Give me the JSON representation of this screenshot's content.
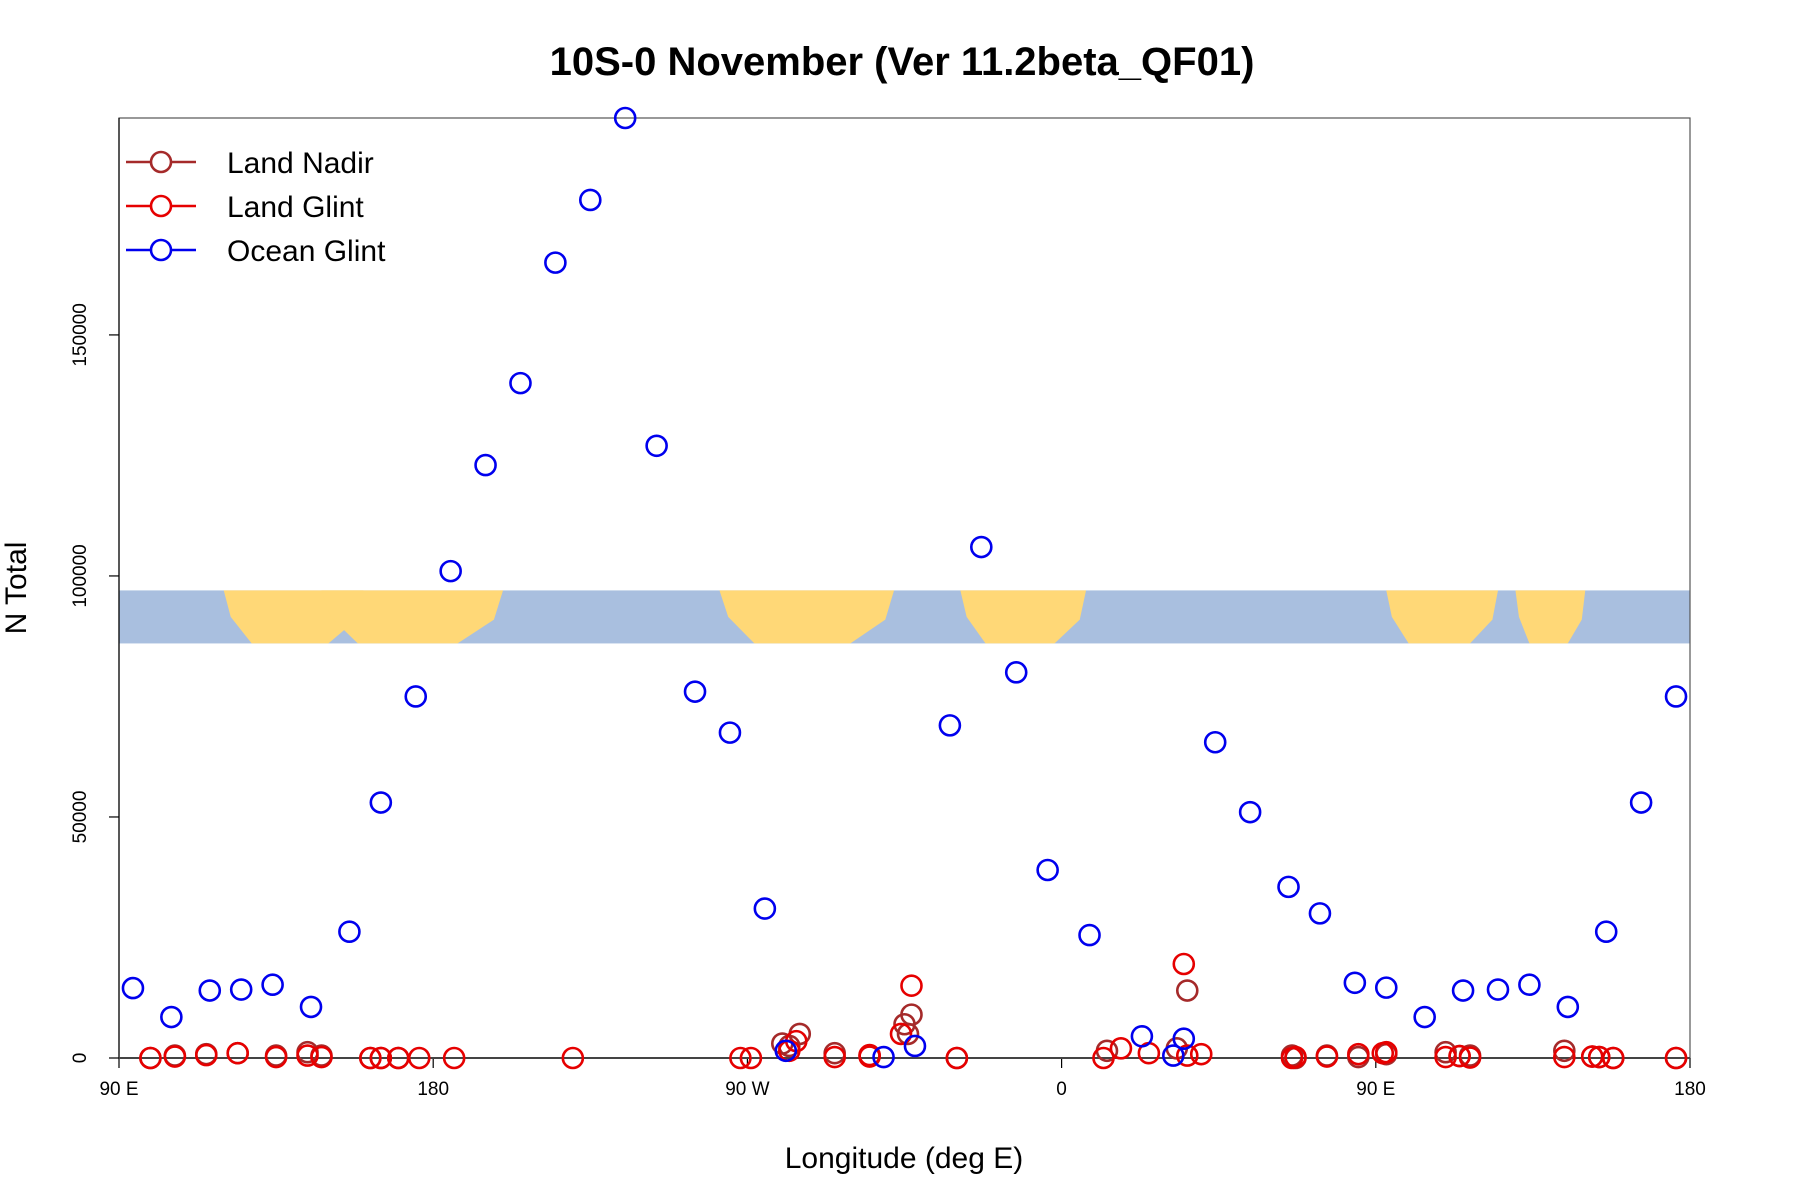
{
  "chart_data": {
    "type": "scatter",
    "title": "10S-0 November (Ver 11.2beta_QF01)",
    "xlabel": "Longitude (deg E)",
    "ylabel": "N Total",
    "x_ticks": [
      {
        "value": 0,
        "label": "90 E"
      },
      {
        "value": 90,
        "label": "180"
      },
      {
        "value": 180,
        "label": "90 W"
      },
      {
        "value": 270,
        "label": "0"
      },
      {
        "value": 360,
        "label": "90 E"
      },
      {
        "value": 450,
        "label": "180"
      }
    ],
    "y_ticks": [
      {
        "value": 0,
        "label": "0"
      },
      {
        "value": 50000,
        "label": "50000"
      },
      {
        "value": 100000,
        "label": "100000"
      },
      {
        "value": 150000,
        "label": "150000"
      }
    ],
    "xlim": [
      0,
      450
    ],
    "ylim": [
      0,
      195000
    ],
    "grid": false,
    "legend_position": "top-left",
    "map_strip": {
      "y_from": 86000,
      "y_to": 97000,
      "ocean_color": "#a9bfdf",
      "land_color": "#ffd877"
    },
    "series": [
      {
        "name": "Land Nadir",
        "color": "#a52a2a",
        "x": [
          9,
          16,
          25,
          34,
          45,
          54,
          58,
          72,
          75,
          80,
          190,
          192,
          195,
          205,
          215,
          225,
          226,
          227,
          240,
          283,
          303,
          306,
          336,
          337,
          346,
          355,
          363,
          380,
          384,
          387,
          414,
          422,
          424,
          428,
          446
        ],
        "y": [
          0,
          500,
          800,
          1000,
          500,
          1200,
          500,
          0,
          0,
          0,
          3000,
          2500,
          5000,
          1000,
          500,
          7000,
          5000,
          9000,
          0,
          1500,
          2000,
          14000,
          500,
          0,
          500,
          200,
          800,
          1200,
          400,
          500,
          1500,
          300,
          200,
          0,
          0
        ]
      },
      {
        "name": "Land Glint",
        "color": "#e60000",
        "x": [
          9,
          16,
          25,
          34,
          45,
          54,
          58,
          72,
          75,
          80,
          86,
          96,
          130,
          178,
          181,
          192,
          194,
          205,
          215,
          215,
          224,
          227,
          240,
          282,
          287,
          295,
          305,
          306,
          310,
          336,
          337,
          346,
          355,
          362,
          363,
          380,
          384,
          387,
          414,
          422,
          424,
          428,
          446
        ],
        "y": [
          0,
          300,
          600,
          1000,
          200,
          500,
          200,
          0,
          0,
          0,
          0,
          0,
          0,
          0,
          0,
          1500,
          3500,
          200,
          600,
          300,
          5000,
          15000,
          0,
          0,
          2000,
          1000,
          19500,
          500,
          800,
          0,
          200,
          300,
          800,
          1000,
          1200,
          200,
          400,
          100,
          200,
          300,
          200,
          0,
          0
        ]
      },
      {
        "name": "Ocean Glint",
        "color": "#0000ee",
        "x": [
          4,
          15,
          26,
          35,
          44,
          55,
          66,
          75,
          85,
          95,
          105,
          115,
          125,
          135,
          145,
          154,
          165,
          175,
          185,
          191,
          219,
          228,
          238,
          247,
          257,
          266,
          278,
          293,
          302,
          305,
          314,
          324,
          335,
          344,
          354,
          363,
          374,
          385,
          395,
          404,
          415,
          426,
          436,
          446
        ],
        "y": [
          14500,
          8500,
          14000,
          14200,
          15200,
          10600,
          26200,
          53000,
          75000,
          101000,
          123000,
          140000,
          165000,
          178000,
          195000,
          127000,
          76000,
          67500,
          31000,
          1500,
          200,
          2500,
          69000,
          106000,
          80000,
          39000,
          25500,
          4500,
          500,
          4000,
          65500,
          51000,
          35500,
          30000,
          15600,
          14600,
          8500,
          14000,
          14200,
          15200,
          10600,
          26200,
          53000,
          75000
        ]
      }
    ]
  }
}
